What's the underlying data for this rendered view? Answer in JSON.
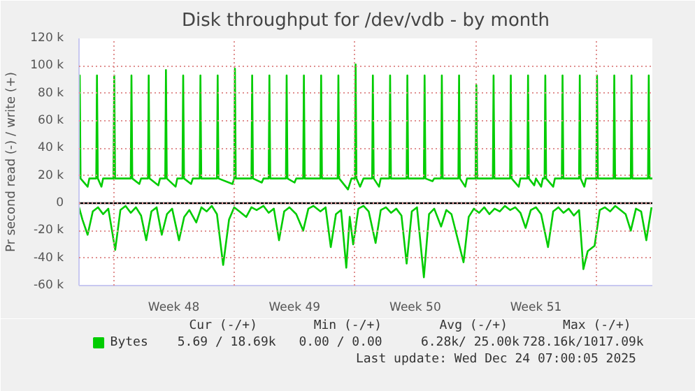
{
  "chart_data": {
    "type": "line",
    "title": "Disk throughput for /dev/vdb - by month",
    "ylabel": "Pr second read (-) / write (+)",
    "xlim": [
      "2025-11-21T00:00",
      "2025-12-24T06:00"
    ],
    "ylim": [
      -60,
      120
    ],
    "xticks": [
      {
        "value": "2025-11-23",
        "label": null
      },
      {
        "value": "2025-11-26T12:00",
        "label": "Week 48"
      },
      {
        "value": "2025-11-30",
        "label": null
      },
      {
        "value": "2025-12-03T12:00",
        "label": "Week 49"
      },
      {
        "value": "2025-12-07",
        "label": null
      },
      {
        "value": "2025-12-10T12:00",
        "label": "Week 50"
      },
      {
        "value": "2025-12-14",
        "label": null
      },
      {
        "value": "2025-12-17T12:00",
        "label": "Week 51"
      },
      {
        "value": "2025-12-21",
        "label": null
      }
    ],
    "yticks": [
      {
        "value": -60,
        "label": "-60 k"
      },
      {
        "value": -40,
        "label": "-40 k"
      },
      {
        "value": -20,
        "label": "-20 k"
      },
      0,
      {
        "value": 20,
        "label": "20 k"
      },
      {
        "value": 40,
        "label": "40 k"
      },
      {
        "value": 60,
        "label": "60 k"
      },
      {
        "value": 80,
        "label": "80 k"
      },
      {
        "value": 100,
        "label": "100 k"
      },
      {
        "value": 120,
        "label": "120 k"
      }
    ],
    "grid": true,
    "legend": "bottom left",
    "ref_lines": [
      {
        "axis": "y",
        "value": 0,
        "label": null,
        "color": "#000000"
      }
    ],
    "series": [
      {
        "name": "Bytes",
        "color": "#00cc00",
        "x": [
          "2025-11-21T00:00",
          "2025-11-21T01:00",
          "2025-11-21T02:10",
          "2025-11-21T12:00",
          "2025-11-21T14:24",
          "2025-11-22T00:00",
          "2025-11-22T01:00",
          "2025-11-22T02:10",
          "2025-11-22T07:12",
          "2025-11-22T09:36",
          "2025-11-23T00:00",
          "2025-11-23T01:00",
          "2025-11-23T02:10",
          "2025-11-24T00:00",
          "2025-11-24T01:00",
          "2025-11-24T02:10",
          "2025-11-24T12:00",
          "2025-11-24T14:24",
          "2025-11-25T00:00",
          "2025-11-25T01:00",
          "2025-11-25T02:10",
          "2025-11-25T14:24",
          "2025-11-25T16:48",
          "2025-11-26T00:00",
          "2025-11-26T01:00",
          "2025-11-26T02:10",
          "2025-11-26T14:24",
          "2025-11-26T16:48",
          "2025-11-27T00:00",
          "2025-11-27T01:00",
          "2025-11-27T02:10",
          "2025-11-27T12:00",
          "2025-11-27T14:24",
          "2025-11-28T00:00",
          "2025-11-28T01:00",
          "2025-11-28T02:10",
          "2025-11-29T00:00",
          "2025-11-29T01:00",
          "2025-11-29T02:10",
          "2025-11-29T21:36",
          "2025-11-30T00:00",
          "2025-11-30T01:00",
          "2025-11-30T02:10",
          "2025-12-01T00:00",
          "2025-12-01T01:00",
          "2025-12-01T02:10",
          "2025-12-01T14:24",
          "2025-12-01T16:48",
          "2025-12-02T00:00",
          "2025-12-02T01:00",
          "2025-12-02T02:10",
          "2025-12-03T00:00",
          "2025-12-03T01:00",
          "2025-12-03T02:10",
          "2025-12-03T12:00",
          "2025-12-03T14:24",
          "2025-12-04T00:00",
          "2025-12-04T01:00",
          "2025-12-04T02:10",
          "2025-12-05T00:00",
          "2025-12-05T01:00",
          "2025-12-05T02:10",
          "2025-12-06T00:00",
          "2025-12-06T01:00",
          "2025-12-06T02:10",
          "2025-12-06T14:24",
          "2025-12-06T19:12",
          "2025-12-07T00:00",
          "2025-12-07T01:00",
          "2025-12-07T02:10",
          "2025-12-07T07:12",
          "2025-12-07T12:00",
          "2025-12-08T00:00",
          "2025-12-08T01:00",
          "2025-12-08T02:10",
          "2025-12-08T09:36",
          "2025-12-08T12:00",
          "2025-12-09T00:00",
          "2025-12-09T01:00",
          "2025-12-09T02:10",
          "2025-12-10T00:00",
          "2025-12-10T01:00",
          "2025-12-10T02:10",
          "2025-12-11T00:00",
          "2025-12-11T01:00",
          "2025-12-11T02:10",
          "2025-12-11T12:00",
          "2025-12-11T14:24",
          "2025-12-12T00:00",
          "2025-12-12T01:00",
          "2025-12-12T02:10",
          "2025-12-13T00:00",
          "2025-12-13T01:00",
          "2025-12-13T02:10",
          "2025-12-13T09:36",
          "2025-12-13T12:00",
          "2025-12-14T00:00",
          "2025-12-14T01:00",
          "2025-12-14T02:10",
          "2025-12-15T00:00",
          "2025-12-15T01:00",
          "2025-12-15T02:10",
          "2025-12-16T00:00",
          "2025-12-16T01:00",
          "2025-12-16T02:10",
          "2025-12-16T12:00",
          "2025-12-16T14:24",
          "2025-12-17T00:00",
          "2025-12-17T01:00",
          "2025-12-17T02:10",
          "2025-12-17T09:36",
          "2025-12-17T12:00",
          "2025-12-17T19:12",
          "2025-12-17T21:36",
          "2025-12-18T00:00",
          "2025-12-18T01:00",
          "2025-12-18T02:10",
          "2025-12-18T12:00",
          "2025-12-18T14:24",
          "2025-12-19T00:00",
          "2025-12-19T01:00",
          "2025-12-19T02:10",
          "2025-12-20T00:00",
          "2025-12-20T01:00",
          "2025-12-20T02:10",
          "2025-12-20T07:12",
          "2025-12-20T09:36",
          "2025-12-21T00:00",
          "2025-12-21T01:00",
          "2025-12-21T02:10",
          "2025-12-22T00:00",
          "2025-12-22T01:00",
          "2025-12-22T02:10",
          "2025-12-23T00:00",
          "2025-12-23T01:00",
          "2025-12-23T02:10",
          "2025-12-24T00:00",
          "2025-12-24T01:00",
          "2025-12-24T02:10",
          "2025-12-24T06:00"
        ],
        "values": [
          18,
          93,
          18,
          12,
          18,
          18,
          93,
          18,
          12,
          18,
          18,
          93,
          18,
          18,
          93,
          18,
          14,
          18,
          18,
          93,
          18,
          13,
          18,
          18,
          97,
          18,
          12,
          18,
          18,
          93,
          18,
          14,
          18,
          18,
          93,
          18,
          18,
          93,
          18,
          14,
          18,
          98,
          18,
          18,
          93,
          18,
          15,
          18,
          18,
          93,
          18,
          18,
          93,
          18,
          15,
          18,
          18,
          93,
          18,
          18,
          93,
          18,
          18,
          93,
          18,
          10,
          18,
          18,
          101,
          18,
          12,
          18,
          18,
          93,
          18,
          12,
          18,
          18,
          93,
          18,
          18,
          93,
          18,
          18,
          93,
          18,
          16,
          18,
          18,
          93,
          18,
          18,
          93,
          18,
          12,
          18,
          18,
          86,
          18,
          18,
          93,
          18,
          18,
          93,
          18,
          12,
          18,
          18,
          93,
          18,
          13,
          18,
          12,
          18,
          18,
          93,
          18,
          12,
          18,
          18,
          93,
          18,
          18,
          93,
          18,
          12,
          18,
          18,
          93,
          18,
          18,
          93,
          18,
          18,
          93,
          18,
          18,
          93,
          18,
          18
        ]
      },
      {
        "color": "#00cc00",
        "x": [
          "2025-11-21T00:00",
          "2025-11-21T04:48",
          "2025-11-21T12:00",
          "2025-11-21T19:12",
          "2025-11-22T02:24",
          "2025-11-22T09:36",
          "2025-11-22T16:48",
          "2025-11-23T02:24",
          "2025-11-23T09:36",
          "2025-11-23T16:48",
          "2025-11-24T00:00",
          "2025-11-24T07:12",
          "2025-11-24T14:24",
          "2025-11-24T21:36",
          "2025-11-25T04:48",
          "2025-11-25T12:00",
          "2025-11-25T19:12",
          "2025-11-26T02:24",
          "2025-11-26T09:36",
          "2025-11-26T19:12",
          "2025-11-27T02:24",
          "2025-11-27T09:36",
          "2025-11-27T19:12",
          "2025-11-28T02:24",
          "2025-11-28T09:36",
          "2025-11-28T16:48",
          "2025-11-29T00:00",
          "2025-11-29T08:38",
          "2025-11-29T16:48",
          "2025-11-30T00:00",
          "2025-11-30T07:12",
          "2025-11-30T16:48",
          "2025-12-01T00:00",
          "2025-12-01T07:12",
          "2025-12-01T16:48",
          "2025-12-02T00:00",
          "2025-12-02T07:12",
          "2025-12-02T14:24",
          "2025-12-02T21:36",
          "2025-12-03T04:48",
          "2025-12-03T14:24",
          "2025-12-04T00:00",
          "2025-12-04T07:12",
          "2025-12-04T14:24",
          "2025-12-05T00:00",
          "2025-12-05T07:12",
          "2025-12-05T14:24",
          "2025-12-05T21:36",
          "2025-12-06T04:48",
          "2025-12-06T12:00",
          "2025-12-06T16:48",
          "2025-12-06T21:36",
          "2025-12-07T04:48",
          "2025-12-07T12:00",
          "2025-12-07T19:12",
          "2025-12-08T04:48",
          "2025-12-08T12:00",
          "2025-12-08T19:12",
          "2025-12-09T02:24",
          "2025-12-09T09:36",
          "2025-12-09T16:48",
          "2025-12-10T00:00",
          "2025-12-10T07:12",
          "2025-12-10T14:24",
          "2025-12-11T00:00",
          "2025-12-11T07:12",
          "2025-12-11T14:24",
          "2025-12-12T00:00",
          "2025-12-12T07:12",
          "2025-12-12T14:24",
          "2025-12-12T21:36",
          "2025-12-13T07:12",
          "2025-12-13T14:24",
          "2025-12-13T21:36",
          "2025-12-14T04:48",
          "2025-12-14T12:00",
          "2025-12-14T19:12",
          "2025-12-15T02:24",
          "2025-12-15T09:36",
          "2025-12-15T16:48",
          "2025-12-16T00:00",
          "2025-12-16T07:12",
          "2025-12-16T14:24",
          "2025-12-16T21:36",
          "2025-12-17T04:48",
          "2025-12-17T12:00",
          "2025-12-17T19:12",
          "2025-12-18T04:48",
          "2025-12-18T12:00",
          "2025-12-18T19:12",
          "2025-12-19T02:24",
          "2025-12-19T09:36",
          "2025-12-19T16:48",
          "2025-12-20T00:00",
          "2025-12-20T06:00",
          "2025-12-20T12:00",
          "2025-12-20T21:36",
          "2025-12-21T04:48",
          "2025-12-21T12:00",
          "2025-12-21T19:12",
          "2025-12-22T02:24",
          "2025-12-22T09:36",
          "2025-12-22T16:48",
          "2025-12-23T00:00",
          "2025-12-23T07:12",
          "2025-12-23T14:24",
          "2025-12-23T21:36",
          "2025-12-24T04:48"
        ],
        "values": [
          -3,
          -12,
          -23,
          -6,
          -3,
          -8,
          -4,
          -34,
          -5,
          -2,
          -7,
          -3,
          -9,
          -27,
          -6,
          -3,
          -23,
          -8,
          -4,
          -27,
          -10,
          -5,
          -14,
          -3,
          -6,
          -2,
          -8,
          -45,
          -12,
          -3,
          -6,
          -10,
          -3,
          -5,
          -2,
          -7,
          -4,
          -27,
          -6,
          -3,
          -8,
          -20,
          -4,
          -2,
          -6,
          -3,
          -32,
          -8,
          -5,
          -47,
          -10,
          -30,
          -4,
          -2,
          -6,
          -29,
          -5,
          -3,
          -7,
          -4,
          -9,
          -44,
          -6,
          -3,
          -54,
          -8,
          -4,
          -17,
          -5,
          -8,
          -23,
          -43,
          -10,
          -4,
          -7,
          -3,
          -8,
          -4,
          -6,
          -2,
          -5,
          -3,
          -7,
          -18,
          -5,
          -3,
          -8,
          -32,
          -6,
          -3,
          -7,
          -4,
          -9,
          -5,
          -48,
          -35,
          -31,
          -5,
          -3,
          -6,
          -2,
          -5,
          -8,
          -20,
          -4,
          -6,
          -27,
          -3
        ]
      }
    ],
    "annotations": [
      "Cur (-/+)",
      "Min (-/+)",
      "Avg (-/+)",
      "Max (-/+)",
      "5.69 / 18.69k",
      "0.00 /  0.00",
      "6.28k/ 25.00k",
      "728.16k/1017.09k",
      "Last update: Wed Dec 24 07:00:05 2025"
    ]
  }
}
